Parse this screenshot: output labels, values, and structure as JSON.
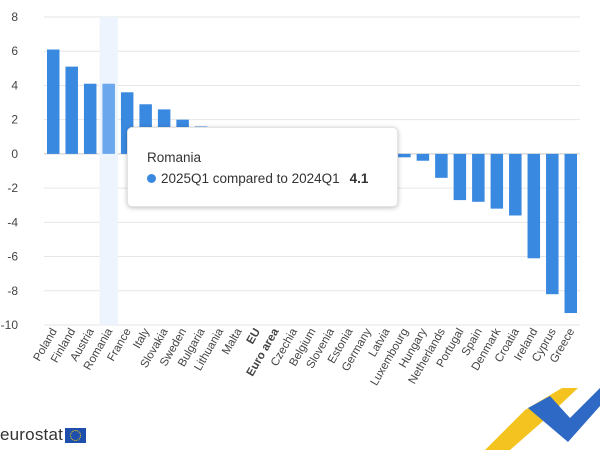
{
  "chart_data": {
    "type": "bar",
    "categories": [
      "Poland",
      "Finland",
      "Austria",
      "Romania",
      "France",
      "Italy",
      "Slovakia",
      "Sweden",
      "Bulgaria",
      "Lithuania",
      "Malta",
      "EU",
      "Euro area",
      "Czechia",
      "Belgium",
      "Slovenia",
      "Estonia",
      "Germany",
      "Latvia",
      "Luxembourg",
      "Hungary",
      "Netherlands",
      "Portugal",
      "Spain",
      "Denmark",
      "Croatia",
      "Ireland",
      "Cyprus",
      "Greece"
    ],
    "bold_categories": [
      "EU",
      "Euro area"
    ],
    "series": [
      {
        "values": [
          6.1,
          5.1,
          4.1,
          4.1,
          3.6,
          2.9,
          2.6,
          2.0,
          1.6,
          1.0,
          0.8,
          0.6,
          0.5,
          0.4,
          0.3,
          0.2,
          0.1,
          0.0,
          -0.1,
          -0.2,
          -0.4,
          -1.4,
          -2.7,
          -2.8,
          -3.2,
          -3.6,
          -6.1,
          -8.2,
          -9.3
        ]
      }
    ],
    "ylim": [
      -10,
      8
    ],
    "yticks": [
      8,
      6,
      4,
      2,
      0,
      -2,
      -4,
      -6,
      -8,
      -10
    ],
    "grid": true,
    "highlight_index": 3,
    "bar_color": "#3a89e0",
    "highlight_color": "#6aa7ec",
    "highlight_band_color": "#eef4fd",
    "xlabel": "",
    "ylabel": ""
  },
  "tooltip": {
    "country": "Romania",
    "series_label": "2025Q1 compared to 2024Q1",
    "value": "4.1",
    "dot_color": "#3a89e0"
  },
  "logo": {
    "text": "eurostat",
    "flag_color": "#1f4fad"
  },
  "decoration_colors": [
    "#f4c31f",
    "#2f69c6"
  ]
}
